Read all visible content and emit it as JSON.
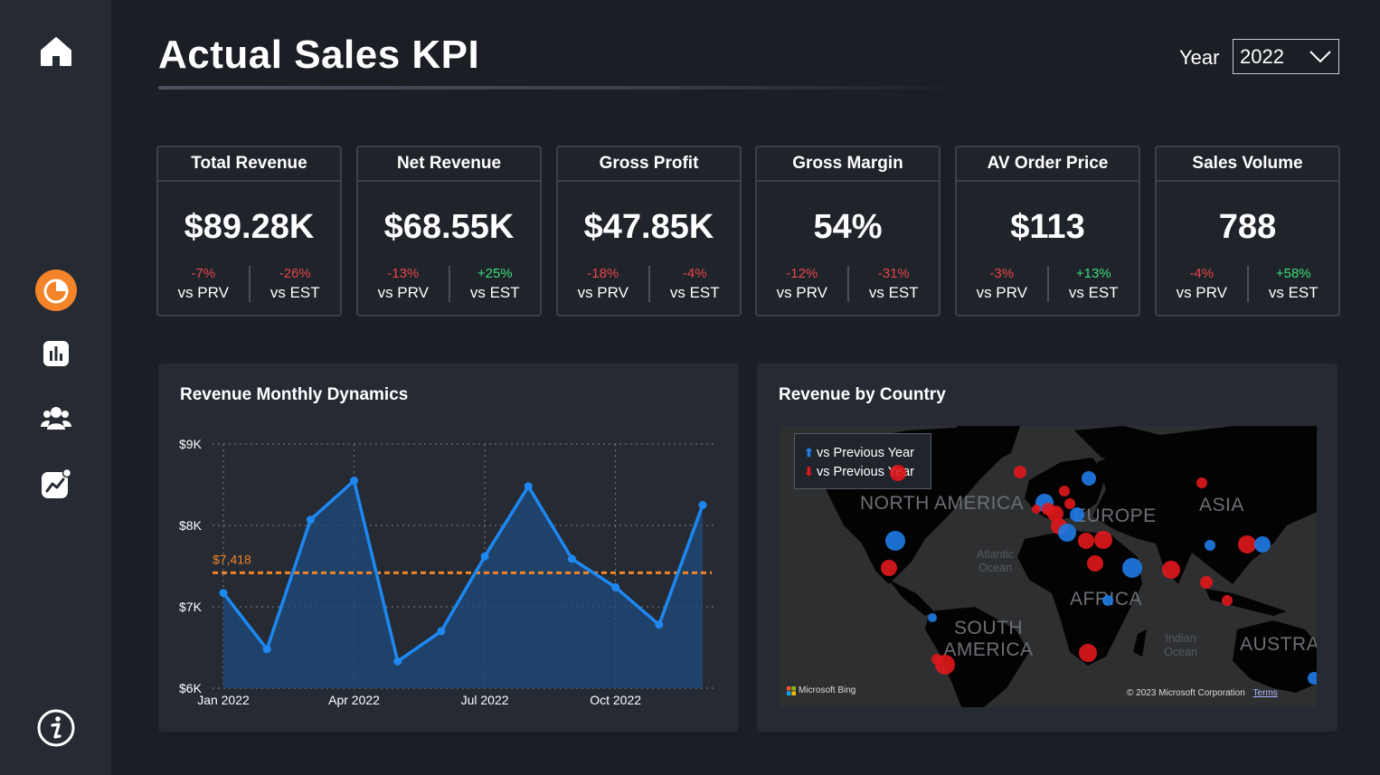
{
  "sidebar": {
    "icons": [
      "home-icon",
      "pie-chart-icon",
      "bar-chart-icon",
      "users-icon",
      "trend-icon",
      "info-icon"
    ]
  },
  "header": {
    "title": "Actual Sales KPI",
    "year_label": "Year",
    "year_value": "2022"
  },
  "kpis": [
    {
      "title": "Total Revenue",
      "value": "$89.28K",
      "prv": "-7%",
      "prv_dir": "neg",
      "est": "-26%",
      "est_dir": "neg"
    },
    {
      "title": "Net Revenue",
      "value": "$68.55K",
      "prv": "-13%",
      "prv_dir": "neg",
      "est": "+25%",
      "est_dir": "pos"
    },
    {
      "title": "Gross Profit",
      "value": "$47.85K",
      "prv": "-18%",
      "prv_dir": "neg",
      "est": "-4%",
      "est_dir": "neg"
    },
    {
      "title": "Gross Margin",
      "value": "54%",
      "prv": "-12%",
      "prv_dir": "neg",
      "est": "-31%",
      "est_dir": "neg"
    },
    {
      "title": "AV Order Price",
      "value": "$113",
      "prv": "-3%",
      "prv_dir": "neg",
      "est": "+13%",
      "est_dir": "pos"
    },
    {
      "title": "Sales Volume",
      "value": "788",
      "prv": "-4%",
      "prv_dir": "neg",
      "est": "+58%",
      "est_dir": "pos"
    }
  ],
  "cmp_labels": {
    "prv": "vs PRV",
    "est": "vs EST"
  },
  "revenue_panel": {
    "title": "Revenue Monthly Dynamics"
  },
  "country_panel": {
    "title": "Revenue by Country",
    "legend": [
      "vs Previous Year",
      "vs Previous Year"
    ],
    "map_labels": [
      "NORTH AMERICA",
      "EUROPE",
      "ASIA",
      "AFRICA",
      "SOUTH AMERICA",
      "AUSTRALIA"
    ],
    "ocean_labels": [
      "Atlantic Ocean",
      "Indian Ocean"
    ],
    "bing": "Microsoft Bing",
    "copyright": "© 2023 Microsoft Corporation",
    "terms": "Terms"
  },
  "colors": {
    "up": "#1f7be6",
    "down": "#e0171c",
    "accent": "#f4842a",
    "line": "#1e88f0"
  },
  "chart_data": {
    "type": "area",
    "title": "Revenue Monthly Dynamics",
    "x": [
      "Jan 2022",
      "Feb 2022",
      "Mar 2022",
      "Apr 2022",
      "May 2022",
      "Jun 2022",
      "Jul 2022",
      "Aug 2022",
      "Sep 2022",
      "Oct 2022",
      "Nov 2022",
      "Dec 2022"
    ],
    "x_tick_labels": [
      "Jan 2022",
      "Apr 2022",
      "Jul 2022",
      "Oct 2022"
    ],
    "series": [
      {
        "values": [
          7170,
          6480,
          8070,
          8550,
          6330,
          6700,
          7620,
          8480,
          7590,
          7240,
          6780,
          8250
        ]
      }
    ],
    "reference_line": {
      "value": 7418,
      "label": "$7,418"
    },
    "y_ticks": [
      "$9K",
      "$8K",
      "$7K",
      "$6K"
    ],
    "ylim": [
      6000,
      9000
    ],
    "grid": true
  }
}
